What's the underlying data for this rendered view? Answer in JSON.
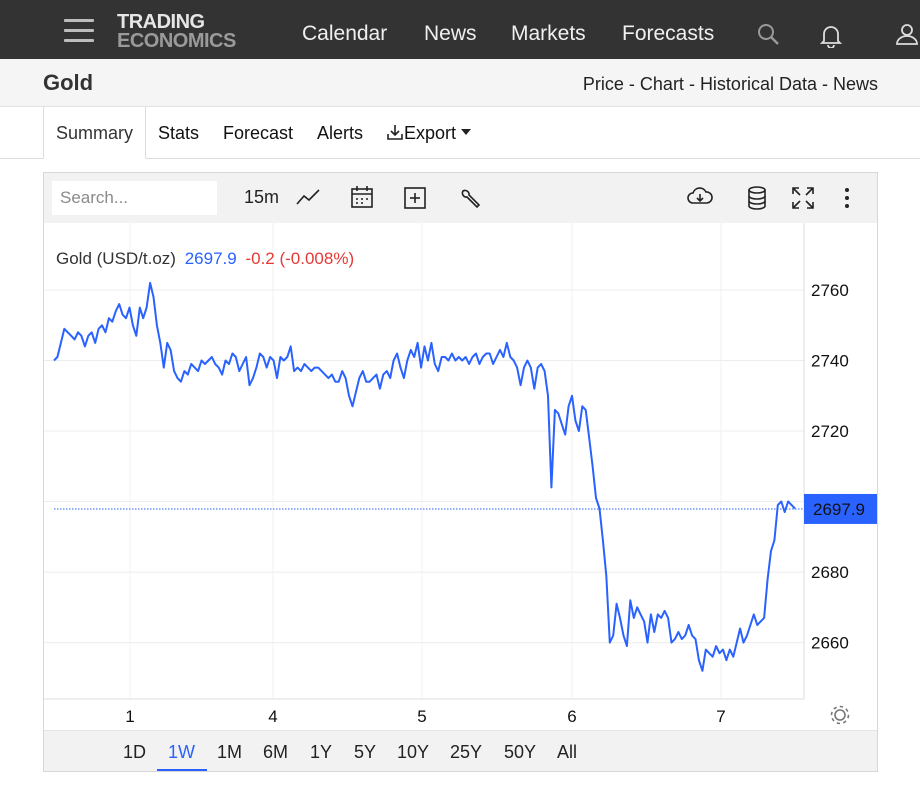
{
  "nav": {
    "logo_line1": "TRADING",
    "logo_line2": "ECONOMICS",
    "links": [
      "Calendar",
      "News",
      "Markets",
      "Forecasts"
    ]
  },
  "header": {
    "title": "Gold",
    "breadcrumbs": [
      "Price",
      "Chart",
      "Historical Data",
      "News"
    ],
    "separator": " - "
  },
  "tabs": {
    "summary": "Summary",
    "stats": "Stats",
    "forecast": "Forecast",
    "alerts": "Alerts",
    "export": "Export"
  },
  "toolbar": {
    "search_placeholder": "Search...",
    "interval": "15m"
  },
  "legend": {
    "name": "Gold (USD/t.oz)",
    "price": "2697.9",
    "change": "-0.2 (-0.008%)"
  },
  "ranges": [
    "1D",
    "1W",
    "1M",
    "6M",
    "1Y",
    "5Y",
    "10Y",
    "25Y",
    "50Y",
    "All"
  ],
  "active_range": "1W",
  "colors": {
    "line": "#2962ff",
    "negative": "#e53935",
    "nav_bg": "#333333"
  },
  "chart_data": {
    "type": "line",
    "x_ticks": [
      "1",
      "4",
      "5",
      "6",
      "7"
    ],
    "y_ticks": [
      2660,
      2680,
      2700,
      2720,
      2740,
      2760
    ],
    "ylim": [
      2644,
      2779
    ],
    "last_value": "2697.9",
    "series": [
      {
        "values": [
          2740,
          2741,
          2745,
          2749,
          2748,
          2747,
          2746,
          2748,
          2747,
          2744,
          2747,
          2748,
          2745,
          2749,
          2750,
          2748,
          2752,
          2751,
          2754,
          2756,
          2753,
          2752,
          2755,
          2750,
          2747,
          2755,
          2752,
          2755,
          2762,
          2758,
          2750,
          2745,
          2738,
          2745,
          2743,
          2737,
          2735,
          2734,
          2737,
          2736,
          2739,
          2738,
          2737,
          2740,
          2739,
          2740,
          2741,
          2739,
          2738,
          2736,
          2740,
          2739,
          2742,
          2741,
          2737,
          2739,
          2741,
          2733,
          2735,
          2738,
          2742,
          2741,
          2738,
          2741,
          2740,
          2735,
          2741,
          2740,
          2741,
          2744,
          2737,
          2738,
          2737,
          2739,
          2738,
          2737,
          2738,
          2738,
          2737,
          2736,
          2735,
          2736,
          2734,
          2734,
          2737,
          2735,
          2730,
          2727,
          2731,
          2735,
          2737,
          2734,
          2734,
          2735,
          2736,
          2732,
          2736,
          2737,
          2735,
          2740,
          2742,
          2738,
          2735,
          2740,
          2743,
          2741,
          2745,
          2738,
          2744,
          2740,
          2745,
          2739,
          2737,
          2741,
          2741,
          2740,
          2742,
          2740,
          2741,
          2740,
          2741,
          2739,
          2741,
          2742,
          2739,
          2741,
          2742,
          2742,
          2739,
          2741,
          2743,
          2741,
          2745,
          2741,
          2740,
          2738,
          2733,
          2738,
          2740,
          2738,
          2732,
          2738,
          2739,
          2737,
          2730,
          2704,
          2726,
          2725,
          2722,
          2719,
          2727,
          2730,
          2723,
          2720,
          2727,
          2726,
          2718,
          2710,
          2701,
          2698,
          2689,
          2679,
          2660,
          2662,
          2671,
          2667,
          2662,
          2659,
          2672,
          2667,
          2670,
          2668,
          2666,
          2660,
          2668,
          2663,
          2668,
          2667,
          2669,
          2667,
          2660,
          2661,
          2663,
          2661,
          2662,
          2665,
          2662,
          2661,
          2655,
          2652,
          2658,
          2657,
          2656,
          2659,
          2657,
          2658,
          2655,
          2658,
          2656,
          2660,
          2664,
          2660,
          2662,
          2665,
          2668,
          2665,
          2666,
          2667,
          2678,
          2686,
          2689,
          2699,
          2700,
          2697,
          2700,
          2699,
          2698
        ]
      }
    ]
  }
}
